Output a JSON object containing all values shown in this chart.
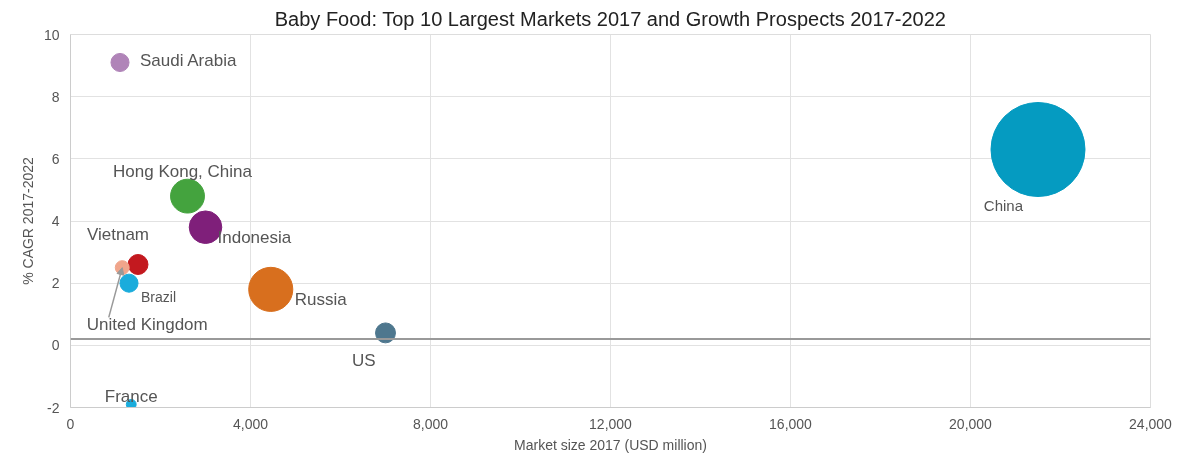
{
  "chart_data": {
    "type": "bubble",
    "title": "Baby Food: Top 10 Largest Markets 2017 and Growth Prospects 2017-2022",
    "xlabel": "Market size 2017 (USD million)",
    "ylabel": "% CAGR 2017-2022",
    "xlim": [
      0,
      24000
    ],
    "xticks": [
      {
        "value": 0,
        "label": "0"
      },
      {
        "value": 4000,
        "label": "4,000"
      },
      {
        "value": 8000,
        "label": "8,000"
      },
      {
        "value": 12000,
        "label": "12,000"
      },
      {
        "value": 16000,
        "label": "16,000"
      },
      {
        "value": 20000,
        "label": "20,000"
      },
      {
        "value": 24000,
        "label": "24,000"
      }
    ],
    "ylim": [
      -2,
      10
    ],
    "yticks": [
      -2,
      0,
      2,
      4,
      6,
      8,
      10
    ],
    "grid": true,
    "ref_lines": [
      {
        "axis": "y",
        "value": 0.2,
        "color": "#999999"
      }
    ],
    "series": [
      {
        "name": "Saudi Arabia",
        "color": "#b084b8",
        "x": [
          1100
        ],
        "values": [
          9.1
        ],
        "sizes": [
          0.037
        ]
      },
      {
        "name": "Hong Kong, China",
        "color": "#44a33e",
        "x": [
          2600
        ],
        "values": [
          4.8
        ],
        "sizes": [
          0.13
        ]
      },
      {
        "name": "Indonesia",
        "color": "#7f1f7a",
        "x": [
          3000
        ],
        "values": [
          3.8
        ],
        "sizes": [
          0.12
        ]
      },
      {
        "name": "Vietnam",
        "color": "#c3191f",
        "x": [
          1500
        ],
        "values": [
          2.6
        ],
        "sizes": [
          0.045
        ]
      },
      {
        "name": "United Kingdom",
        "color": "#f0a58b",
        "x": [
          1150
        ],
        "values": [
          2.5
        ],
        "sizes": [
          0.022
        ]
      },
      {
        "name": "Brazil",
        "color": "#1aacdc",
        "x": [
          1300
        ],
        "values": [
          2.0
        ],
        "sizes": [
          0.037
        ]
      },
      {
        "name": "Russia",
        "color": "#d86f1e",
        "x": [
          4450
        ],
        "values": [
          1.8
        ],
        "sizes": [
          0.22
        ]
      },
      {
        "name": "US",
        "color": "#4e778e",
        "x": [
          7000
        ],
        "values": [
          0.4
        ],
        "sizes": [
          0.045
        ]
      },
      {
        "name": "China",
        "color": "#059bc1",
        "x": [
          21500
        ],
        "values": [
          6.3
        ],
        "sizes": [
          1
        ]
      },
      {
        "name": "France",
        "color": "#1aacdc",
        "x": [
          1350
        ],
        "values": [
          -1.9
        ],
        "sizes": [
          0.011
        ]
      }
    ]
  }
}
